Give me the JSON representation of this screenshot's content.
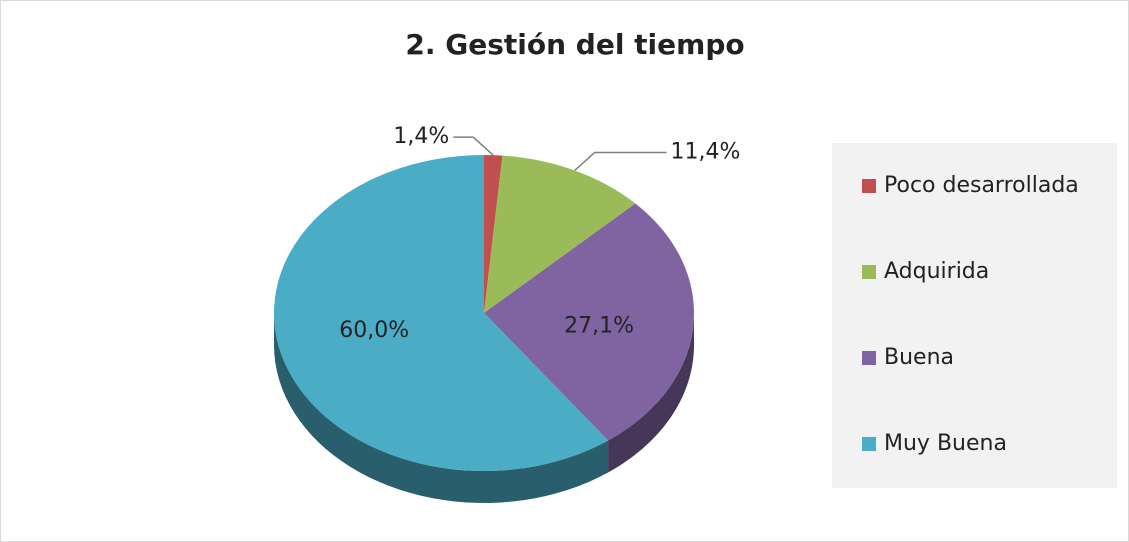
{
  "chart_data": {
    "type": "pie",
    "title": "2. Gestión del tiempo",
    "categories": [
      "Poco desarrollada",
      "Adquirida",
      "Buena",
      "Muy Buena"
    ],
    "values": [
      1.4,
      11.4,
      27.1,
      60.0
    ],
    "value_labels": [
      "1,4%",
      "11,4%",
      "27,1%",
      "60,0%"
    ],
    "colors": [
      "#c0504d",
      "#9bbb59",
      "#8064a2",
      "#4bacc6"
    ],
    "legend": "right"
  }
}
